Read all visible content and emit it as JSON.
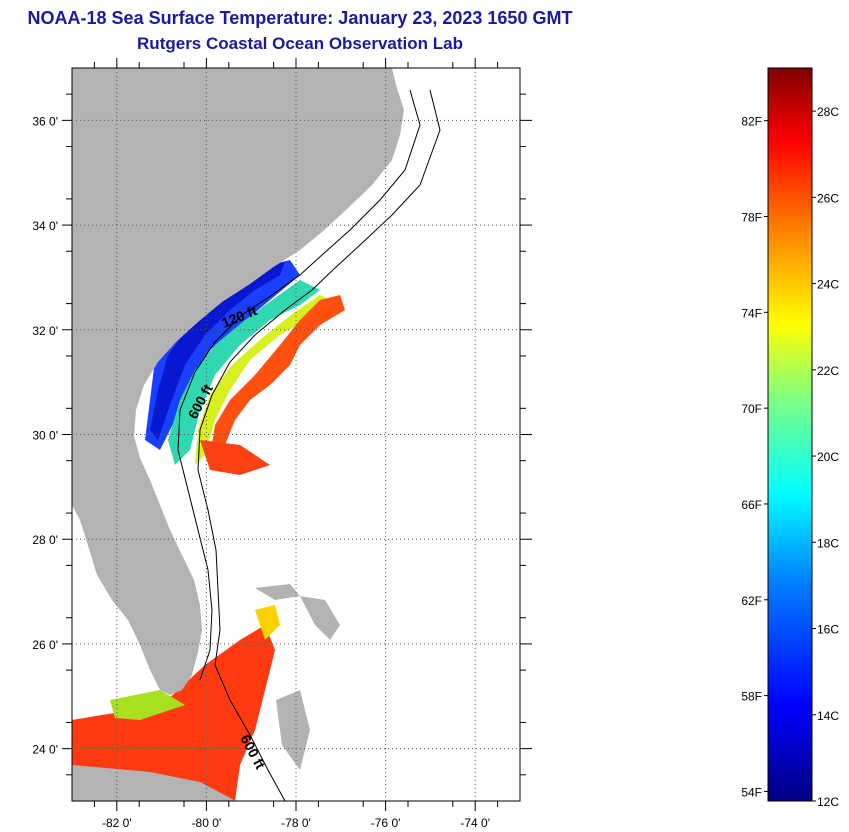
{
  "title_line1": "NOAA-18 Sea Surface Temperature:  January 23, 2023 1650 GMT",
  "title_line2": "Rutgers Coastal Ocean Observation Lab",
  "map": {
    "lon_range": [
      -83,
      -73
    ],
    "lat_range": [
      23,
      37
    ],
    "lat_ticks": [
      {
        "value": 36,
        "label": "36 0'"
      },
      {
        "value": 34,
        "label": "34 0'"
      },
      {
        "value": 32,
        "label": "32 0'"
      },
      {
        "value": 30,
        "label": "30 0'"
      },
      {
        "value": 28,
        "label": "28 0'"
      },
      {
        "value": 26,
        "label": "26 0'"
      },
      {
        "value": 24,
        "label": "24 0'"
      }
    ],
    "lon_ticks": [
      {
        "value": -82,
        "label": "-82 0'"
      },
      {
        "value": -80,
        "label": "-80 0'"
      },
      {
        "value": -78,
        "label": "-78 0'"
      },
      {
        "value": -76,
        "label": "-76 0'"
      },
      {
        "value": -74,
        "label": "-74 0'"
      }
    ],
    "contours": [
      {
        "label": "120 ft"
      },
      {
        "label": "600 ft"
      },
      {
        "label": "600 ft"
      }
    ],
    "land_color": "#b3b3b3",
    "no_data_color": "#ffffff"
  },
  "colorbar": {
    "range_c": [
      12,
      29
    ],
    "colors": [
      "#000080",
      "#0000ff",
      "#0080ff",
      "#00ffff",
      "#80ff80",
      "#ffff00",
      "#ff8000",
      "#ff0000",
      "#800000"
    ],
    "labels_f": [
      {
        "value": 54,
        "label": "54F"
      },
      {
        "value": 58,
        "label": "58F"
      },
      {
        "value": 62,
        "label": "62F"
      },
      {
        "value": 66,
        "label": "66F"
      },
      {
        "value": 70,
        "label": "70F"
      },
      {
        "value": 74,
        "label": "74F"
      },
      {
        "value": 78,
        "label": "78F"
      },
      {
        "value": 82,
        "label": "82F"
      }
    ],
    "labels_c": [
      {
        "value": 12,
        "label": "12C"
      },
      {
        "value": 14,
        "label": "14C"
      },
      {
        "value": 16,
        "label": "16C"
      },
      {
        "value": 18,
        "label": "18C"
      },
      {
        "value": 20,
        "label": "20C"
      },
      {
        "value": 22,
        "label": "22C"
      },
      {
        "value": 24,
        "label": "24C"
      },
      {
        "value": 26,
        "label": "26C"
      },
      {
        "value": 28,
        "label": "28C"
      }
    ]
  }
}
